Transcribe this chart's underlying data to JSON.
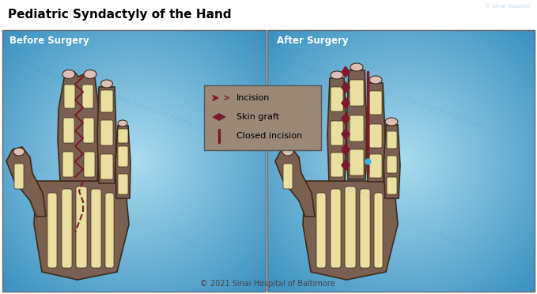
{
  "title": "Pediatric Syndactyly of the Hand",
  "title_fontsize": 11,
  "before_label": "Before Surgery",
  "after_label": "After Surgery",
  "copyright": "© 2021 Sinai Hospital of Baltimore",
  "watermark": "Sinai Hospital of Baltimore",
  "bg_light": "#90d0e8",
  "bg_dark": "#4aa0c8",
  "skin_color": "#7a6050",
  "bone_color": "#e8dfa0",
  "nail_pink": "#dcc0b8",
  "outline_color": "#3d2b1a",
  "incision_color": "#7a1a2e",
  "legend_bg": "#9a8878",
  "cyan_gap": "#40b8e0",
  "panel_border": "#666666",
  "title_area_bg": "#ffffff",
  "wm_color": "#2060a0",
  "copyright_color": "#444444"
}
